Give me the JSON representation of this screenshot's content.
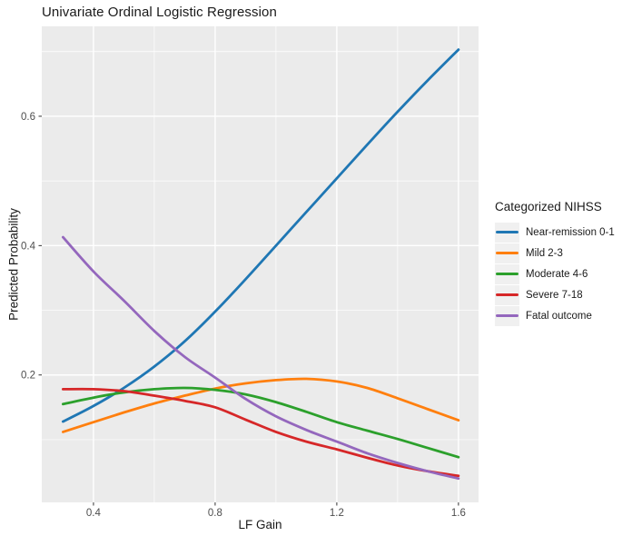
{
  "title": "Univariate Ordinal Logistic Regression",
  "chart_data": {
    "type": "line",
    "title": "Univariate Ordinal Logistic Regression",
    "xlabel": "LF Gain",
    "ylabel": "Predicted Probability",
    "legend_title": "Categorized NIHSS",
    "legend_position": "right",
    "grid": true,
    "panel_bg": "#EBEBEB",
    "grid_color": "#FFFFFF",
    "legend_key_bg": "#F0F0F0",
    "tick_color": "#333333",
    "tick_label_color": "#4D4D4D",
    "xlim": [
      0.23,
      1.666
    ],
    "ylim": [
      0.003,
      0.739
    ],
    "x_major_ticks": [
      0.4,
      0.8,
      1.2,
      1.6
    ],
    "x_tick_labels": [
      "0.4",
      "0.8",
      "1.2",
      "1.6"
    ],
    "x_minor_ticks": [
      0.6,
      1.0,
      1.4
    ],
    "y_major_ticks": [
      0.2,
      0.4,
      0.6
    ],
    "y_tick_labels": [
      "0.2",
      "0.4",
      "0.6"
    ],
    "y_minor_ticks": [
      0.1,
      0.3,
      0.5,
      0.7
    ],
    "x": [
      0.3,
      0.4,
      0.5,
      0.6,
      0.7,
      0.8,
      0.9,
      1.0,
      1.1,
      1.2,
      1.3,
      1.4,
      1.5,
      1.6
    ],
    "series": [
      {
        "name": "Near-remission 0-1",
        "color": "#1F77B4",
        "values": [
          0.128,
          0.152,
          0.18,
          0.213,
          0.252,
          0.298,
          0.348,
          0.4,
          0.452,
          0.504,
          0.556,
          0.607,
          0.656,
          0.703
        ]
      },
      {
        "name": "Mild 2-3",
        "color": "#FF7F0E",
        "values": [
          0.112,
          0.127,
          0.142,
          0.156,
          0.168,
          0.179,
          0.187,
          0.192,
          0.194,
          0.19,
          0.18,
          0.164,
          0.147,
          0.13
        ]
      },
      {
        "name": "Moderate 4-6",
        "color": "#2CA02C",
        "values": [
          0.155,
          0.165,
          0.173,
          0.178,
          0.18,
          0.177,
          0.17,
          0.158,
          0.143,
          0.127,
          0.114,
          0.101,
          0.087,
          0.073
        ]
      },
      {
        "name": "Severe 7-18",
        "color": "#D62728",
        "values": [
          0.178,
          0.178,
          0.175,
          0.168,
          0.16,
          0.15,
          0.131,
          0.112,
          0.097,
          0.085,
          0.072,
          0.06,
          0.051,
          0.044
        ]
      },
      {
        "name": "Fatal outcome",
        "color": "#9467BD",
        "values": [
          0.413,
          0.36,
          0.315,
          0.268,
          0.228,
          0.196,
          0.163,
          0.136,
          0.115,
          0.097,
          0.079,
          0.064,
          0.051,
          0.04
        ]
      }
    ]
  }
}
